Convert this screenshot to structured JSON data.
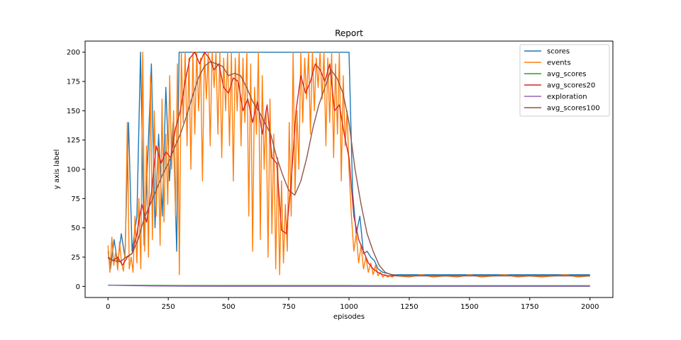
{
  "chart_data": {
    "type": "line",
    "title": "Report",
    "xlabel": "episodes",
    "ylabel": "y axis label",
    "xlim": [
      -95,
      2095
    ],
    "ylim": [
      -9.5,
      209.5
    ],
    "xticks": [
      0,
      250,
      500,
      750,
      1000,
      1250,
      1500,
      1750,
      2000
    ],
    "yticks": [
      0,
      25,
      50,
      75,
      100,
      125,
      150,
      175,
      200
    ],
    "grid": false,
    "legend": "top-right",
    "series": [
      {
        "name": "scores",
        "color": "#1f77b4",
        "x": [
          0,
          10,
          25,
          40,
          55,
          70,
          85,
          100,
          120,
          135,
          150,
          165,
          180,
          195,
          210,
          225,
          240,
          255,
          270,
          285,
          295,
          305,
          320,
          340,
          360,
          380,
          400,
          420,
          440,
          460,
          480,
          500,
          520,
          540,
          560,
          580,
          600,
          620,
          640,
          660,
          680,
          700,
          715,
          730,
          745,
          760,
          780,
          800,
          820,
          840,
          860,
          880,
          900,
          920,
          940,
          960,
          980,
          1000,
          1015,
          1030,
          1045,
          1060,
          1075,
          1090,
          1105,
          1120,
          1140,
          1160,
          1180,
          1200,
          1250,
          1300,
          1400,
          1500,
          1600,
          1700,
          1800,
          1900,
          2000
        ],
        "y": [
          30,
          15,
          40,
          20,
          45,
          25,
          140,
          30,
          60,
          200,
          35,
          110,
          190,
          50,
          130,
          60,
          170,
          90,
          140,
          30,
          200,
          200,
          200,
          200,
          200,
          200,
          200,
          200,
          200,
          200,
          200,
          200,
          200,
          200,
          200,
          200,
          200,
          200,
          200,
          200,
          200,
          200,
          200,
          200,
          200,
          200,
          200,
          200,
          200,
          200,
          200,
          200,
          200,
          200,
          200,
          200,
          200,
          200,
          80,
          45,
          60,
          28,
          30,
          25,
          22,
          15,
          12,
          11,
          10,
          10,
          10,
          10,
          10,
          10,
          10,
          10,
          10,
          10,
          10
        ]
      },
      {
        "name": "events",
        "color": "#ff7f0e",
        "x": [
          0,
          8,
          16,
          24,
          32,
          40,
          48,
          56,
          64,
          72,
          80,
          88,
          96,
          104,
          112,
          120,
          128,
          136,
          144,
          152,
          160,
          168,
          176,
          184,
          192,
          200,
          208,
          216,
          224,
          232,
          240,
          248,
          256,
          264,
          272,
          280,
          288,
          296,
          304,
          312,
          320,
          328,
          336,
          344,
          352,
          360,
          368,
          376,
          384,
          392,
          400,
          408,
          416,
          424,
          432,
          440,
          448,
          456,
          464,
          472,
          480,
          488,
          496,
          504,
          512,
          520,
          528,
          536,
          544,
          552,
          560,
          568,
          576,
          584,
          592,
          600,
          608,
          616,
          624,
          632,
          640,
          648,
          656,
          664,
          672,
          680,
          688,
          696,
          704,
          712,
          720,
          728,
          736,
          744,
          752,
          760,
          768,
          776,
          784,
          792,
          800,
          808,
          816,
          824,
          832,
          840,
          848,
          856,
          864,
          872,
          880,
          888,
          896,
          904,
          912,
          920,
          928,
          936,
          944,
          952,
          960,
          968,
          976,
          984,
          992,
          1000,
          1010,
          1020,
          1030,
          1040,
          1050,
          1060,
          1070,
          1080,
          1090,
          1100,
          1110,
          1120,
          1130,
          1140,
          1150,
          1160,
          1170,
          1180,
          1190,
          1200,
          1250,
          1300,
          1350,
          1400,
          1450,
          1500,
          1550,
          1600,
          1650,
          1700,
          1750,
          1800,
          1850,
          1900,
          1950,
          2000
        ],
        "y": [
          35,
          12,
          42,
          18,
          30,
          14,
          38,
          20,
          13,
          33,
          140,
          15,
          25,
          12,
          60,
          20,
          75,
          15,
          200,
          30,
          120,
          25,
          180,
          40,
          150,
          60,
          120,
          35,
          160,
          55,
          130,
          70,
          180,
          100,
          150,
          60,
          190,
          10,
          200,
          140,
          200,
          120,
          195,
          100,
          200,
          130,
          200,
          150,
          195,
          90,
          200,
          160,
          200,
          120,
          200,
          170,
          200,
          130,
          200,
          110,
          195,
          150,
          200,
          120,
          200,
          90,
          195,
          150,
          200,
          120,
          195,
          140,
          200,
          60,
          190,
          30,
          170,
          130,
          200,
          40,
          180,
          100,
          150,
          25,
          160,
          45,
          130,
          15,
          110,
          10,
          90,
          20,
          70,
          30,
          140,
          60,
          200,
          80,
          150,
          100,
          200,
          140,
          195,
          160,
          200,
          130,
          200,
          150,
          195,
          170,
          200,
          160,
          200,
          120,
          195,
          140,
          200,
          110,
          190,
          130,
          200,
          90,
          180,
          120,
          150,
          100,
          60,
          30,
          45,
          20,
          35,
          15,
          25,
          12,
          20,
          10,
          18,
          9,
          12,
          8,
          10,
          8,
          9,
          8,
          10,
          9,
          8,
          10,
          8,
          9,
          8,
          10,
          8,
          9,
          10,
          8,
          9,
          8,
          9,
          10,
          8,
          9
        ]
      },
      {
        "name": "avg_scores",
        "color": "#2ca02c",
        "x": [
          0,
          250,
          500,
          750,
          1000,
          1250,
          1500,
          1750,
          2000
        ],
        "y": [
          1.0,
          0.8,
          0.7,
          0.7,
          0.7,
          0.6,
          0.6,
          0.6,
          0.6
        ]
      },
      {
        "name": "avg_scores20",
        "color": "#d62728",
        "x": [
          0,
          20,
          40,
          60,
          80,
          100,
          120,
          140,
          160,
          180,
          200,
          220,
          240,
          260,
          280,
          300,
          320,
          340,
          360,
          380,
          400,
          420,
          440,
          460,
          480,
          500,
          520,
          540,
          560,
          580,
          600,
          620,
          640,
          660,
          680,
          700,
          720,
          740,
          760,
          780,
          800,
          820,
          840,
          860,
          880,
          900,
          920,
          940,
          960,
          980,
          1000,
          1020,
          1040,
          1060,
          1080,
          1100,
          1120,
          1140,
          1160,
          1200,
          1300,
          1400,
          1500,
          1600,
          1700,
          1800,
          1900,
          2000
        ],
        "y": [
          25,
          22,
          25,
          18,
          25,
          28,
          45,
          70,
          55,
          80,
          120,
          105,
          115,
          110,
          135,
          150,
          175,
          195,
          200,
          190,
          200,
          195,
          185,
          190,
          170,
          165,
          178,
          175,
          150,
          160,
          140,
          158,
          130,
          155,
          110,
          105,
          48,
          45,
          90,
          150,
          180,
          165,
          175,
          190,
          185,
          175,
          190,
          150,
          155,
          130,
          110,
          60,
          40,
          30,
          20,
          15,
          12,
          10,
          9,
          9,
          9,
          9,
          9,
          9,
          9,
          9,
          9,
          9
        ]
      },
      {
        "name": "exploration",
        "color": "#9467bd",
        "x": [
          0,
          100,
          200,
          300,
          400,
          500,
          600,
          800,
          1000,
          1250,
          1500,
          1750,
          2000
        ],
        "y": [
          1.0,
          0.6,
          0.3,
          0.1,
          0.05,
          0.02,
          0.01,
          0.01,
          0.01,
          0.01,
          0.01,
          0.01,
          0.01
        ]
      },
      {
        "name": "avg_scores100",
        "color": "#8c564b",
        "x": [
          0,
          25,
          50,
          75,
          100,
          125,
          150,
          175,
          200,
          225,
          250,
          275,
          300,
          325,
          350,
          375,
          400,
          425,
          450,
          475,
          500,
          525,
          550,
          575,
          600,
          625,
          650,
          675,
          700,
          725,
          750,
          775,
          800,
          825,
          850,
          875,
          900,
          925,
          950,
          975,
          1000,
          1025,
          1050,
          1075,
          1100,
          1125,
          1150,
          1175,
          1200,
          1300,
          1400,
          1500,
          1600,
          1700,
          1800,
          1900,
          2000
        ],
        "y": [
          24,
          22,
          21,
          25,
          28,
          40,
          58,
          70,
          82,
          95,
          105,
          118,
          130,
          145,
          162,
          178,
          188,
          192,
          190,
          188,
          180,
          182,
          180,
          170,
          158,
          150,
          140,
          130,
          110,
          95,
          82,
          78,
          90,
          110,
          135,
          155,
          170,
          185,
          178,
          165,
          140,
          100,
          70,
          45,
          30,
          18,
          12,
          10,
          9,
          9,
          9,
          9,
          9,
          9,
          9,
          9,
          9
        ]
      }
    ]
  }
}
